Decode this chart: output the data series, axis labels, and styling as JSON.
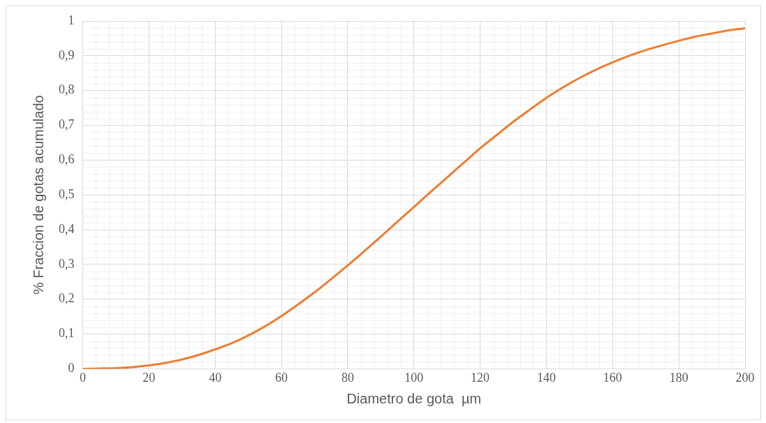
{
  "chart_data": {
    "type": "line",
    "xlabel": "Diametro de gota  µm",
    "ylabel": "% Fraccion de gotas acumulado",
    "x": [
      0,
      5,
      10,
      15,
      20,
      25,
      30,
      35,
      40,
      45,
      50,
      55,
      60,
      65,
      70,
      75,
      80,
      85,
      90,
      95,
      100,
      105,
      110,
      115,
      120,
      125,
      130,
      135,
      140,
      145,
      150,
      155,
      160,
      165,
      170,
      175,
      180,
      185,
      190,
      195,
      200
    ],
    "series": [
      {
        "color": "#ed7d31",
        "values": [
          0,
          0.001,
          0.002,
          0.005,
          0.01,
          0.017,
          0.027,
          0.04,
          0.056,
          0.074,
          0.096,
          0.122,
          0.152,
          0.185,
          0.22,
          0.258,
          0.297,
          0.338,
          0.38,
          0.423,
          0.465,
          0.508,
          0.55,
          0.592,
          0.634,
          0.672,
          0.71,
          0.745,
          0.779,
          0.809,
          0.836,
          0.86,
          0.881,
          0.9,
          0.916,
          0.93,
          0.943,
          0.955,
          0.964,
          0.973,
          0.979
        ]
      }
    ],
    "xlim": [
      0,
      200
    ],
    "xticks": [
      0,
      20,
      40,
      60,
      80,
      100,
      120,
      140,
      160,
      180,
      200
    ],
    "ylim": [
      0,
      1
    ],
    "yticks": [
      0,
      {
        "value": 0.1,
        "label": "0,1"
      },
      {
        "value": 0.2,
        "label": "0,2"
      },
      {
        "value": 0.3,
        "label": "0,3"
      },
      {
        "value": 0.4,
        "label": "0,4"
      },
      {
        "value": 0.5,
        "label": "0,5"
      },
      {
        "value": 0.6,
        "label": "0,6"
      },
      {
        "value": 0.7,
        "label": "0,7"
      },
      {
        "value": 0.8,
        "label": "0,8"
      },
      {
        "value": 0.9,
        "label": "0,9"
      },
      1
    ],
    "grid": true,
    "legend": false,
    "marker": "none",
    "line_style": "solid"
  }
}
